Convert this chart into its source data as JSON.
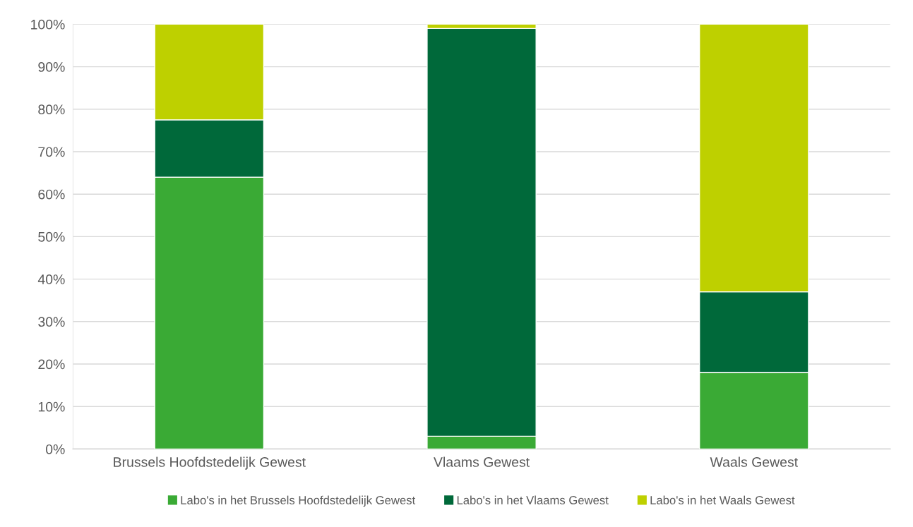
{
  "chart_data": {
    "type": "bar",
    "stacked": true,
    "categories": [
      "Brussels Hoofdstedelijk Gewest",
      "Vlaams Gewest",
      "Waals Gewest"
    ],
    "series": [
      {
        "name": "Labo's in het Brussels Hoofdstedelijk Gewest",
        "color": "#3aaa35",
        "values": [
          64,
          3,
          18
        ]
      },
      {
        "name": "Labo's in het Vlaams Gewest",
        "color": "#00693a",
        "values": [
          13.5,
          96,
          19
        ]
      },
      {
        "name": "Labo's in het Waals Gewest",
        "color": "#bed000",
        "values": [
          22.5,
          1,
          63
        ]
      }
    ],
    "ylim": [
      0,
      100
    ],
    "yticks": [
      {
        "value": 0,
        "label": "0%"
      },
      {
        "value": 10,
        "label": "10%"
      },
      {
        "value": 20,
        "label": "20%"
      },
      {
        "value": 30,
        "label": "30%"
      },
      {
        "value": 40,
        "label": "40%"
      },
      {
        "value": 50,
        "label": "50%"
      },
      {
        "value": 60,
        "label": "60%"
      },
      {
        "value": 70,
        "label": "70%"
      },
      {
        "value": 80,
        "label": "80%"
      },
      {
        "value": 90,
        "label": "90%"
      },
      {
        "value": 100,
        "label": "100%"
      }
    ],
    "grid": "y",
    "legend": "bottom"
  }
}
